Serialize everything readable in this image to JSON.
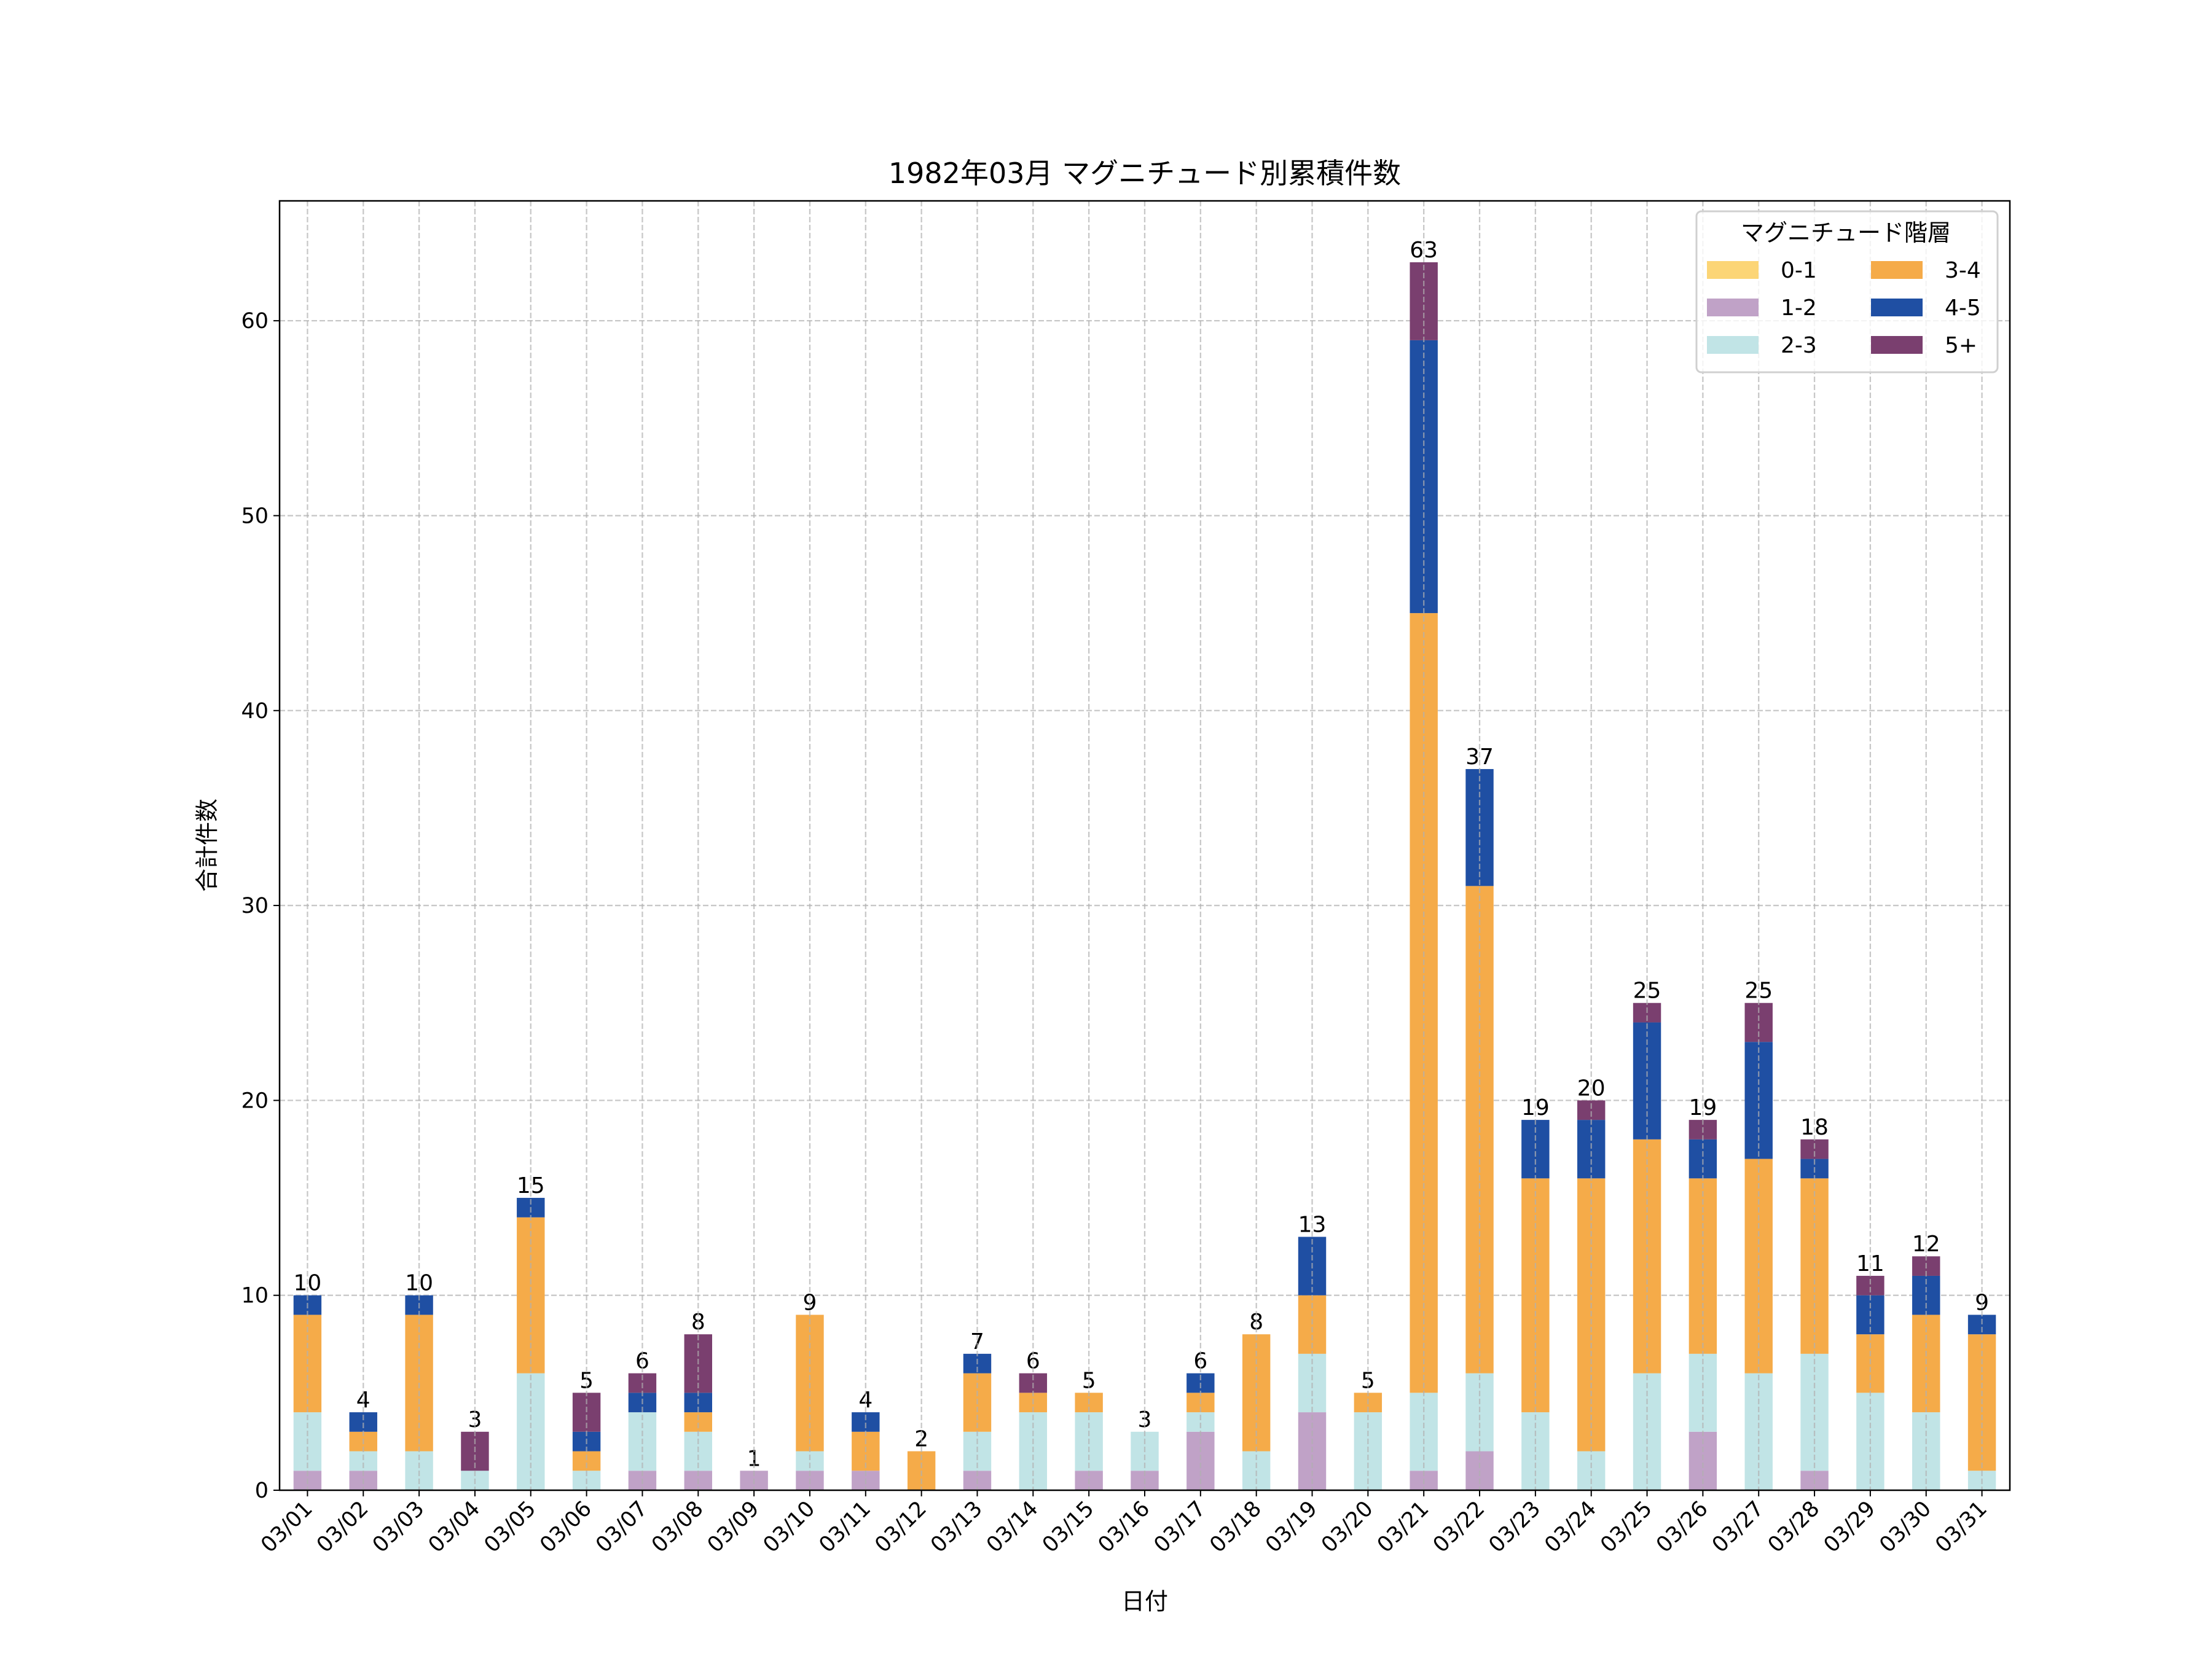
{
  "chart_data": {
    "type": "bar",
    "stacked": true,
    "title": "1982年03月 マグニチュード別累積件数",
    "xlabel": "日付",
    "ylabel": "合計件数",
    "ylim": [
      0,
      66.15
    ],
    "yticks": [
      0,
      10,
      20,
      30,
      40,
      50,
      60
    ],
    "grid": true,
    "legend": {
      "title": "マグニチュード階層",
      "placement": "top-right",
      "columns": 2
    },
    "categories": [
      "03/01",
      "03/02",
      "03/03",
      "03/04",
      "03/05",
      "03/06",
      "03/07",
      "03/08",
      "03/09",
      "03/10",
      "03/11",
      "03/12",
      "03/13",
      "03/14",
      "03/15",
      "03/16",
      "03/17",
      "03/18",
      "03/19",
      "03/20",
      "03/21",
      "03/22",
      "03/23",
      "03/24",
      "03/25",
      "03/26",
      "03/27",
      "03/28",
      "03/29",
      "03/30",
      "03/31"
    ],
    "series": [
      {
        "name": "0-1",
        "color": "#fcd576",
        "values": [
          0,
          0,
          0,
          0,
          0,
          0,
          0,
          0,
          0,
          0,
          0,
          0,
          0,
          0,
          0,
          0,
          0,
          0,
          0,
          0,
          0,
          0,
          0,
          0,
          0,
          0,
          0,
          0,
          0,
          0,
          0
        ]
      },
      {
        "name": "1-2",
        "color": "#c0a2c7",
        "values": [
          1,
          1,
          0,
          0,
          0,
          0,
          1,
          1,
          1,
          1,
          1,
          0,
          1,
          0,
          1,
          1,
          3,
          0,
          4,
          0,
          1,
          2,
          0,
          0,
          0,
          3,
          0,
          1,
          0,
          0,
          0
        ]
      },
      {
        "name": "2-3",
        "color": "#c1e4e6",
        "values": [
          3,
          1,
          2,
          1,
          6,
          1,
          3,
          2,
          0,
          1,
          0,
          0,
          2,
          4,
          3,
          2,
          1,
          2,
          3,
          4,
          4,
          4,
          4,
          2,
          6,
          4,
          6,
          6,
          5,
          4,
          1
        ]
      },
      {
        "name": "3-4",
        "color": "#f5ab49",
        "values": [
          5,
          1,
          7,
          0,
          8,
          1,
          0,
          1,
          0,
          7,
          2,
          2,
          3,
          1,
          1,
          0,
          1,
          6,
          3,
          1,
          40,
          25,
          12,
          14,
          12,
          9,
          11,
          9,
          3,
          5,
          7
        ]
      },
      {
        "name": "4-5",
        "color": "#1f4fa3",
        "values": [
          1,
          1,
          1,
          0,
          1,
          1,
          1,
          1,
          0,
          0,
          1,
          0,
          1,
          0,
          0,
          0,
          1,
          0,
          3,
          0,
          14,
          6,
          3,
          3,
          6,
          2,
          6,
          1,
          2,
          2,
          1
        ]
      },
      {
        "name": "5+",
        "color": "#7a3f6f",
        "values": [
          0,
          0,
          0,
          2,
          0,
          2,
          1,
          3,
          0,
          0,
          0,
          0,
          0,
          1,
          0,
          0,
          0,
          0,
          0,
          0,
          4,
          0,
          0,
          1,
          1,
          1,
          2,
          1,
          1,
          1,
          0
        ]
      }
    ],
    "totals": [
      10,
      4,
      10,
      3,
      15,
      5,
      6,
      8,
      1,
      9,
      4,
      2,
      7,
      6,
      5,
      3,
      6,
      8,
      13,
      5,
      63,
      37,
      19,
      20,
      25,
      19,
      25,
      18,
      11,
      12,
      9
    ]
  }
}
